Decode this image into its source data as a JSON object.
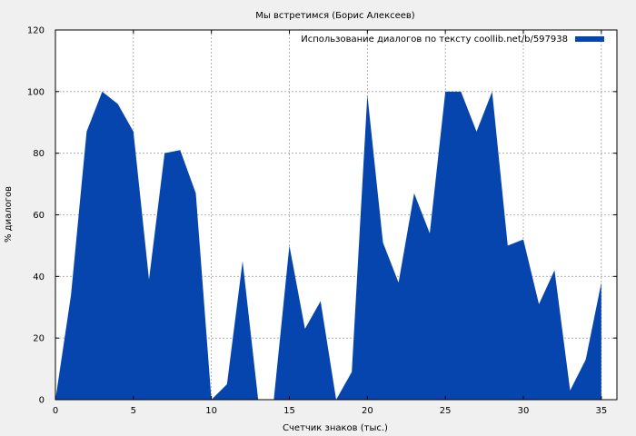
{
  "chart_data": {
    "type": "area",
    "title": "Мы встретимся (Борис Алексеев)",
    "xlabel": "Счетчик знаков (тыс.)",
    "ylabel": "% диалогов",
    "xlim": [
      0,
      36
    ],
    "ylim": [
      0,
      120
    ],
    "xticks": [
      0,
      5,
      10,
      15,
      20,
      25,
      30,
      35
    ],
    "yticks": [
      0,
      20,
      40,
      60,
      80,
      100,
      120
    ],
    "grid": true,
    "legend_position": "top-right",
    "series": [
      {
        "name": "Использование диалогов по тексту coollib.net/b/597938",
        "color": "#0645ad",
        "x": [
          0,
          1,
          2,
          3,
          4,
          5,
          6,
          7,
          8,
          9,
          10,
          11,
          12,
          13,
          14,
          15,
          16,
          17,
          18,
          19,
          20,
          21,
          22,
          23,
          24,
          25,
          26,
          27,
          28,
          29,
          30,
          31,
          32,
          33,
          34,
          35
        ],
        "y": [
          0,
          34,
          87,
          100,
          96,
          87,
          39,
          80,
          81,
          67,
          0,
          5,
          45,
          0,
          0,
          50,
          23,
          32,
          0,
          9,
          99,
          51,
          38,
          67,
          54,
          100,
          100,
          87,
          100,
          50,
          52,
          31,
          42,
          3,
          13,
          38
        ]
      }
    ]
  }
}
